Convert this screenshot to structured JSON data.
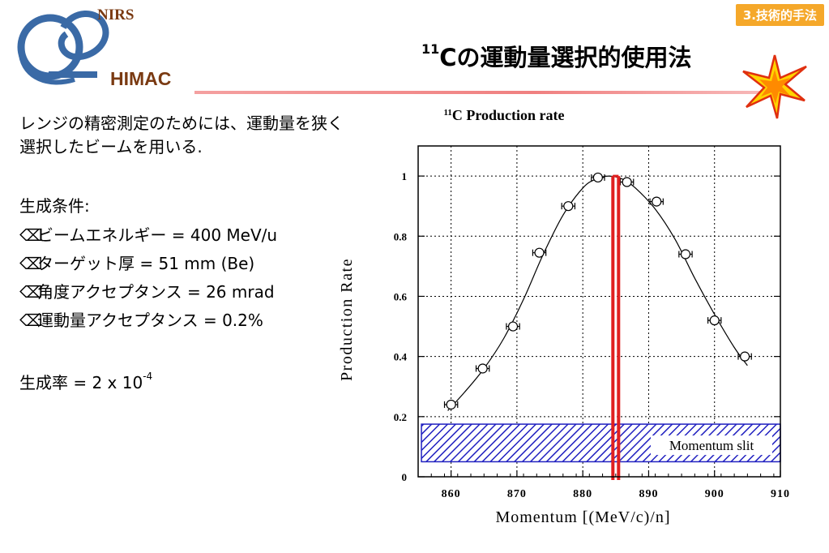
{
  "header": {
    "logo_top": "NIRS",
    "logo_bottom": "HIMAC",
    "section_badge": "3.技術的手法",
    "title_sup": "11",
    "title_main": "Cの運動量選択的使用法"
  },
  "body": {
    "description": "レンジの精密測定のためには、運動量を狭く選択したビームを用いる.",
    "conditions_heading": "生成条件:",
    "bullet_glyph": "⌫",
    "conditions": [
      "ビームエネルギー = 400 MeV/u",
      "ターゲット厚 = 51 mm (Be)",
      "角度アクセプタンス = 26 mrad",
      "運動量アクセプタンス = 0.2%"
    ],
    "rate_text": "生成率 = 2 x 10",
    "rate_exp": "-4"
  },
  "colors": {
    "logo_ring": "#3a6aa6",
    "logo_text": "#7a3a12",
    "badge": "#f5a82a",
    "slit_line": "#e02020",
    "hatch": "#2020c0"
  },
  "chart_data": {
    "type": "scatter",
    "title_sup": "11",
    "title": "C Production rate",
    "xlabel": "Momentum [(MeV/c)/n]",
    "ylabel": "Production Rate",
    "xlim": [
      855,
      910
    ],
    "ylim": [
      0,
      1.1
    ],
    "x_ticks": [
      860,
      870,
      880,
      890,
      900,
      910
    ],
    "y_ticks": [
      0,
      0.2,
      0.4,
      0.6,
      0.8,
      1
    ],
    "y_tick_labels": [
      "0",
      "0.2",
      "0.4",
      "0.6",
      "0.8",
      "1"
    ],
    "grid": true,
    "series": [
      {
        "x": [
          860.0,
          864.8,
          869.4,
          873.4,
          877.8,
          882.3,
          886.7,
          891.2,
          895.6,
          900.0,
          904.6
        ],
        "y": [
          0.24,
          0.36,
          0.5,
          0.745,
          0.9,
          0.995,
          0.98,
          0.915,
          0.74,
          0.52,
          0.4
        ],
        "xerr": [
          1.0,
          1.0,
          1.0,
          1.0,
          1.0,
          1.0,
          1.0,
          1.0,
          1.0,
          1.0,
          1.0
        ]
      }
    ],
    "fit_curve": {
      "x": [
        859.5,
        862,
        865,
        868,
        871,
        874,
        877,
        880,
        882,
        884,
        886,
        888,
        891,
        894,
        897,
        900,
        903,
        905
      ],
      "y": [
        0.22,
        0.28,
        0.36,
        0.46,
        0.59,
        0.74,
        0.87,
        0.96,
        0.99,
        1.0,
        0.99,
        0.96,
        0.89,
        0.79,
        0.66,
        0.54,
        0.43,
        0.37
      ]
    },
    "slit": {
      "x": 885,
      "y_range": [
        0,
        1.0
      ]
    },
    "hatched_band": {
      "x_range": [
        855.5,
        910
      ],
      "y_range": [
        0.05,
        0.175
      ],
      "label": "Momentum slit"
    }
  }
}
